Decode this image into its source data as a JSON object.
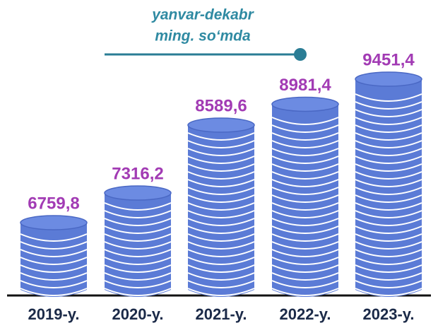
{
  "chart_data": {
    "type": "bar",
    "title": "yanvar-dekabr",
    "subtitle": "ming. so‘mda",
    "categories": [
      "2019-y.",
      "2020-y.",
      "2021-y.",
      "2022-y.",
      "2023-y."
    ],
    "values": [
      6759.8,
      7316.2,
      8589.6,
      8981.4,
      9451.4
    ],
    "value_labels": [
      "6759,8",
      "7316,2",
      "8589,6",
      "8981,4",
      "9451,4"
    ],
    "color": "#5b7bd6"
  }
}
